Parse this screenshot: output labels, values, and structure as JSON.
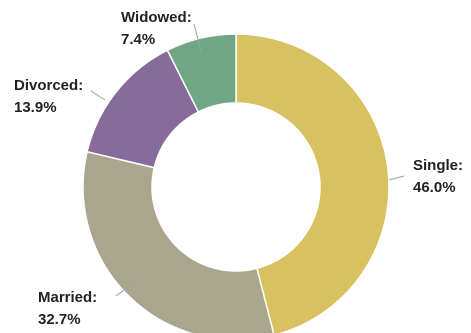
{
  "chart_data": {
    "type": "pie",
    "donut": true,
    "slices": [
      {
        "name": "Single",
        "value": 46.0,
        "label": "Single:",
        "pct": "46.0%",
        "color": "#d8c160"
      },
      {
        "name": "Married",
        "value": 32.7,
        "label": "Married:",
        "pct": "32.7%",
        "color": "#aaa68e"
      },
      {
        "name": "Divorced",
        "value": 13.9,
        "label": "Divorced:",
        "pct": "13.9%",
        "color": "#876b9a"
      },
      {
        "name": "Widowed",
        "value": 7.4,
        "label": "Widowed:",
        "pct": "7.4%",
        "color": "#71a684"
      }
    ],
    "start": "top",
    "direction": "clockwise",
    "legend": "none"
  }
}
